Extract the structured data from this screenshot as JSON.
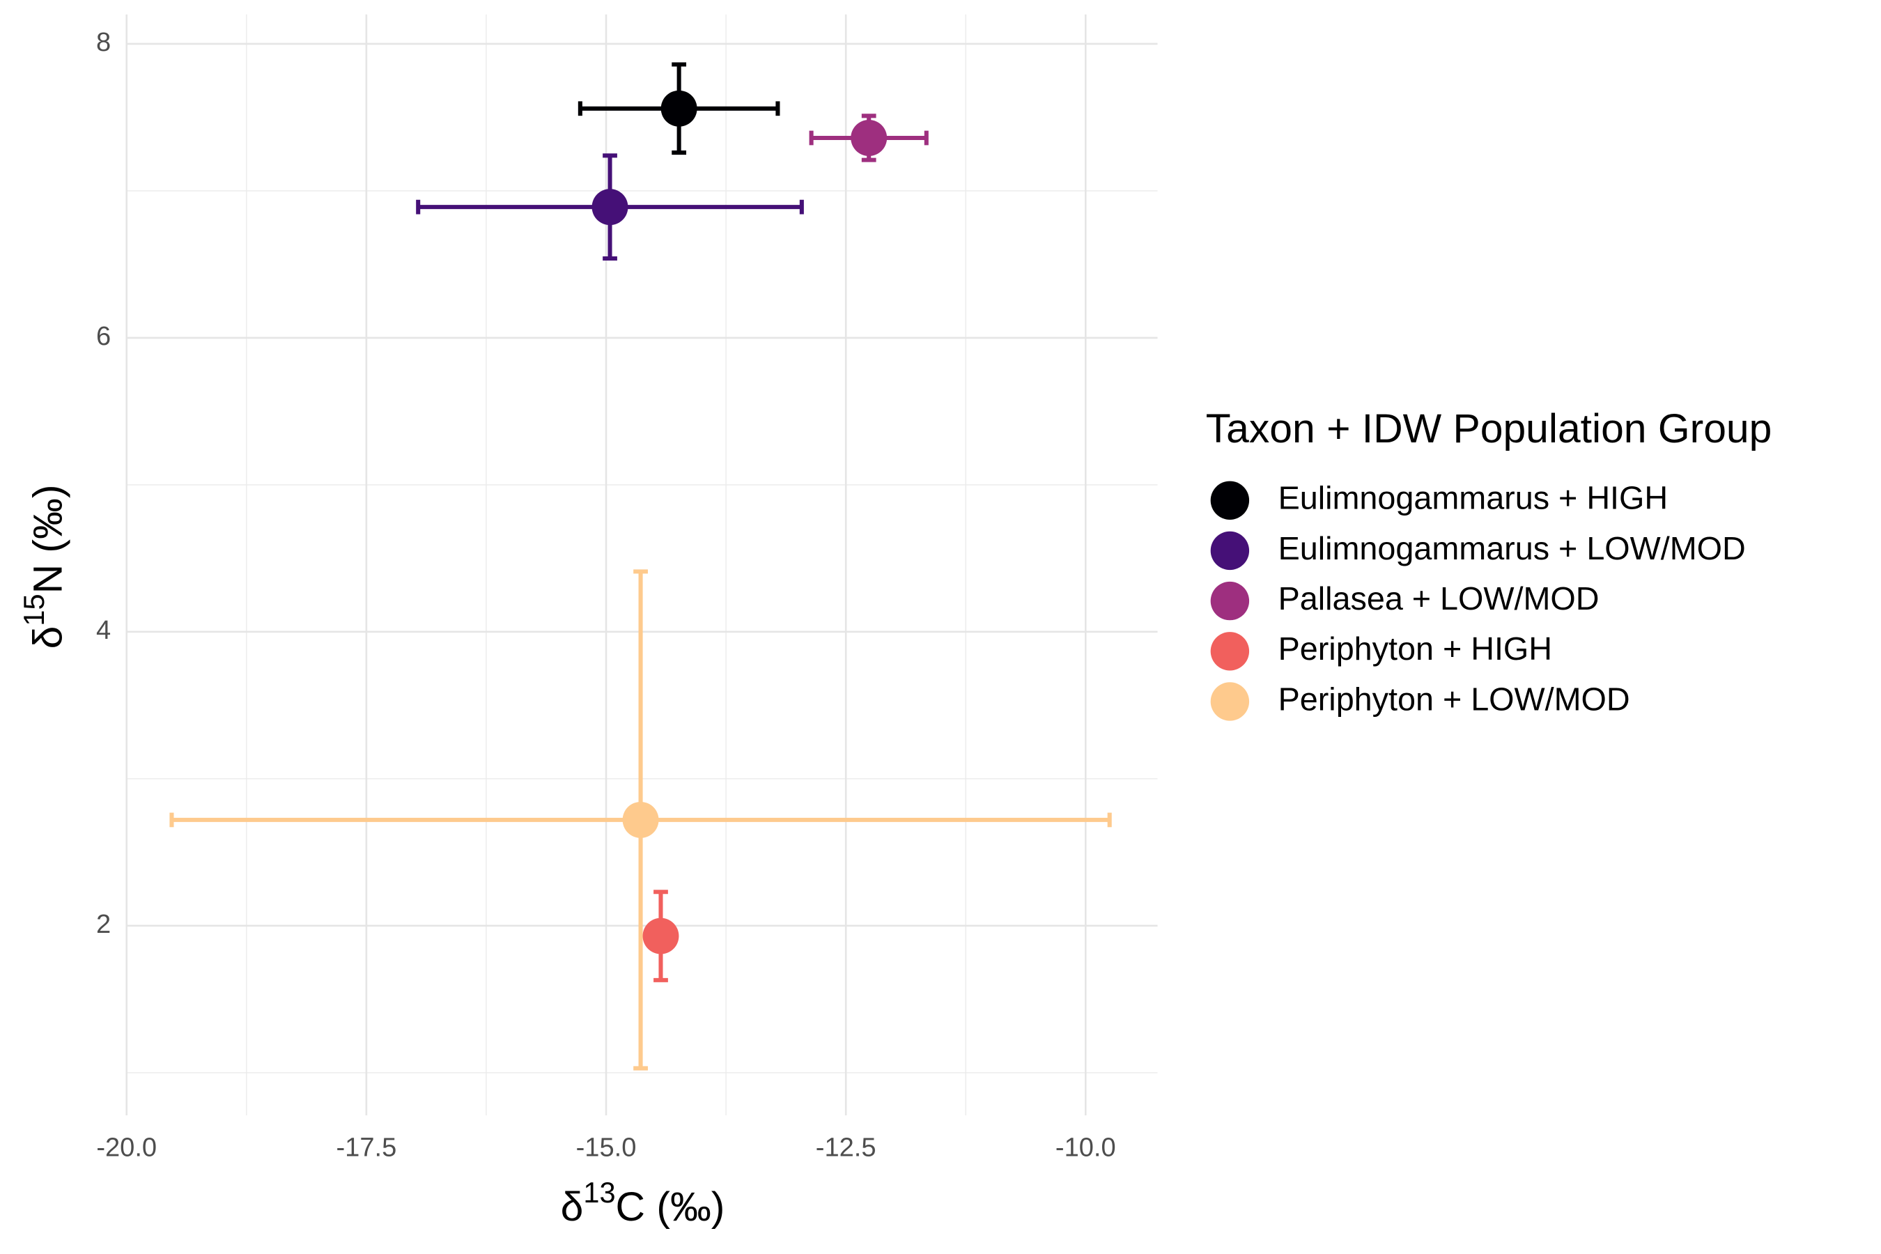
{
  "chart_data": {
    "type": "scatter",
    "x_label": {
      "symbol": "δ",
      "sup": "13",
      "rest": "C (‰)"
    },
    "y_label": {
      "symbol": "δ",
      "sup": "15",
      "rest": "N (‰)"
    },
    "legend_title": "Taxon + IDW Population Group",
    "legend": "right",
    "grid": true,
    "xlim": [
      -20,
      -9.25
    ],
    "ylim": [
      0.71,
      8.2
    ],
    "xticks": [
      {
        "value": -20,
        "label": "-20.0"
      },
      -17.5,
      {
        "value": -15,
        "label": "-15.0"
      },
      -12.5,
      {
        "value": -10,
        "label": "-10.0"
      }
    ],
    "yticks": [
      2,
      4,
      6,
      8
    ],
    "x_minor_ticks": [
      -18.75,
      -16.25,
      -13.75,
      -11.25
    ],
    "y_minor_ticks": [
      1,
      3,
      5,
      7
    ],
    "series": [
      {
        "name": "Eulimnogammarus + HIGH",
        "color": "#000004",
        "x": [
          -14.24
        ],
        "y": [
          7.56
        ],
        "xerr": [
          1.03
        ],
        "yerr": [
          0.3
        ]
      },
      {
        "name": "Eulimnogammarus + LOW/MOD",
        "color": "#451077",
        "x": [
          -14.96
        ],
        "y": [
          6.89
        ],
        "xerr": [
          2.0
        ],
        "yerr": [
          0.35
        ]
      },
      {
        "name": "Pallasea + LOW/MOD",
        "color": "#9e2f7f",
        "x": [
          -12.26
        ],
        "y": [
          7.36
        ],
        "xerr": [
          0.6
        ],
        "yerr": [
          0.15
        ]
      },
      {
        "name": "Periphyton + HIGH",
        "color": "#f1605d",
        "x": [
          -14.43
        ],
        "y": [
          1.93
        ],
        "xerr": [
          0
        ],
        "yerr": [
          0.3
        ]
      },
      {
        "name": "Periphyton + LOW/MOD",
        "color": "#feca8d",
        "x": [
          -14.64
        ],
        "y": [
          2.72
        ],
        "xerr": [
          4.89
        ],
        "yerr": [
          1.69
        ]
      }
    ]
  }
}
